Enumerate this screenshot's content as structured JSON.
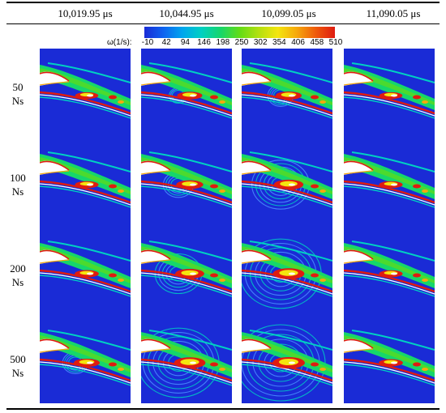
{
  "columns": [
    "10,019.95 μs",
    "10,044.95 μs",
    "10,099.05 μs",
    "11,090.05 μs"
  ],
  "rows": [
    {
      "num": "50",
      "unit": "Ns"
    },
    {
      "num": "100",
      "unit": "Ns"
    },
    {
      "num": "200",
      "unit": "Ns"
    },
    {
      "num": "500",
      "unit": "Ns"
    }
  ],
  "colorbar": {
    "title": "ω(1/s):",
    "ticks": [
      "-10",
      "42",
      "94",
      "146",
      "198",
      "250",
      "302",
      "354",
      "406",
      "458",
      "510"
    ],
    "colors": [
      "#1a2bd6",
      "#0e63f0",
      "#00a6ee",
      "#00d0c2",
      "#16d66b",
      "#62dc16",
      "#b3e010",
      "#f4e60e",
      "#f6a80c",
      "#ef5a0a",
      "#df1b10"
    ]
  }
}
